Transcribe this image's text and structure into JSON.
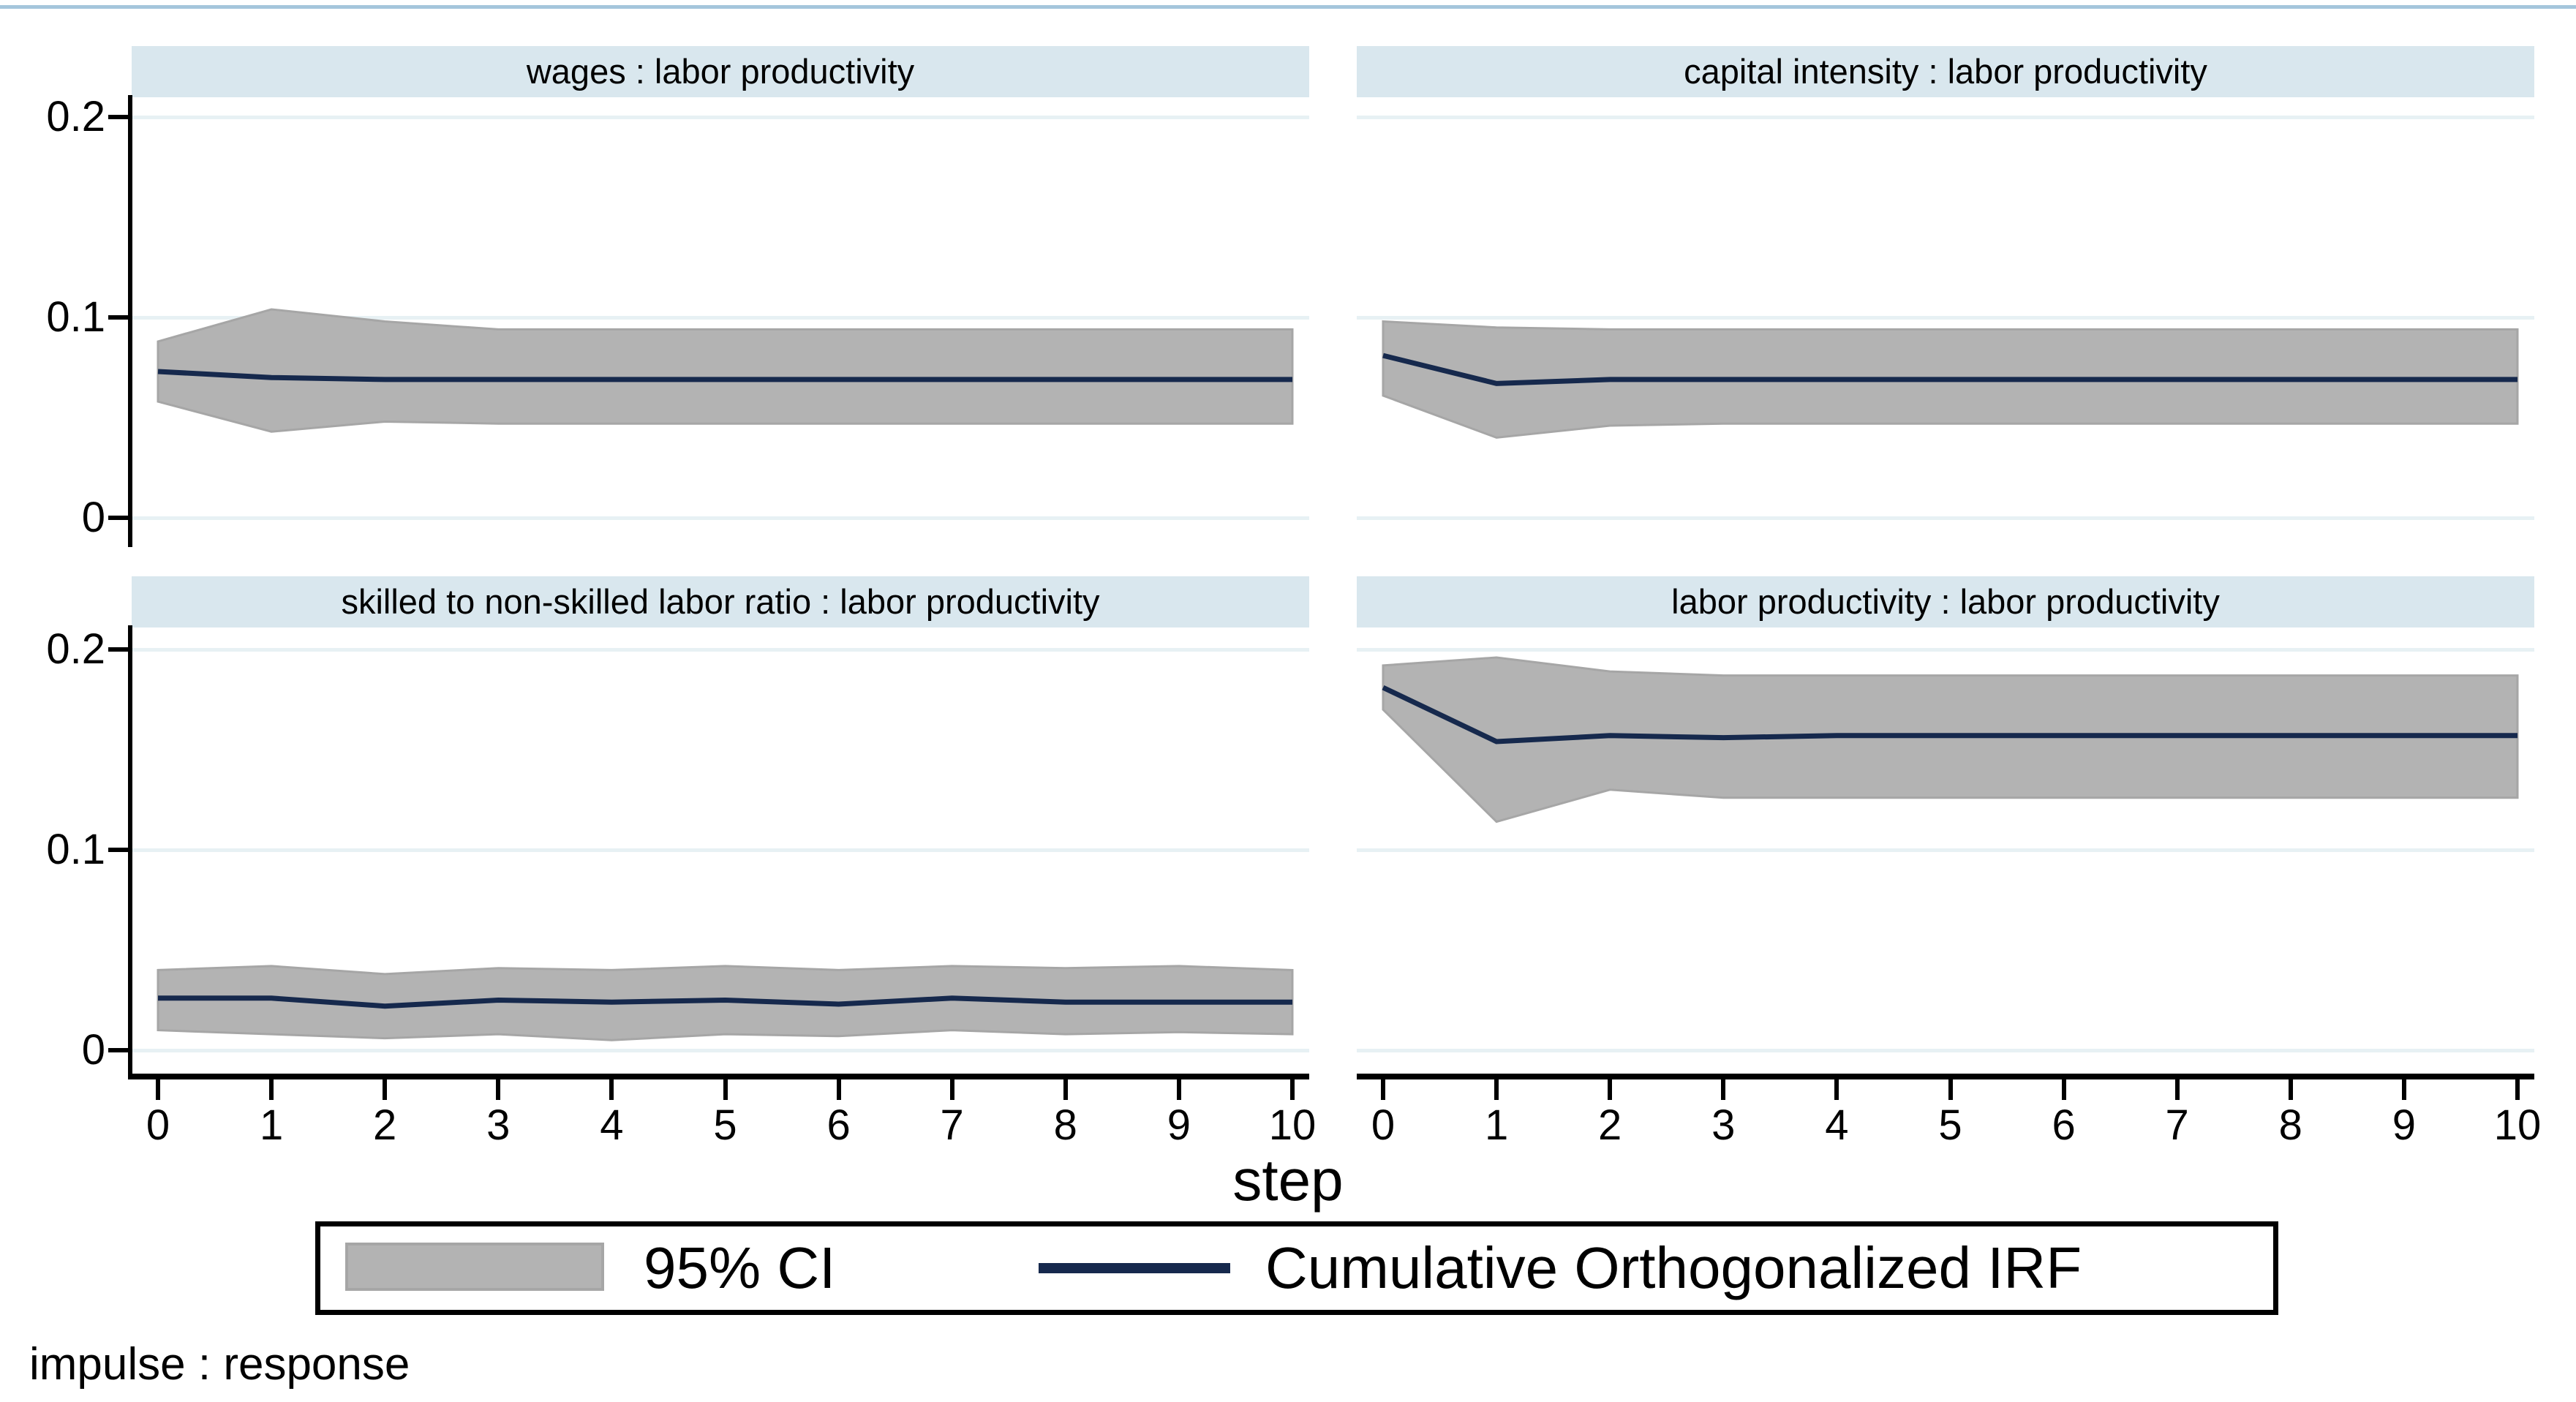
{
  "figure": {
    "x_axis_title": "step",
    "footer": "impulse : response",
    "y_tick_labels": [
      "0.2",
      "0.1",
      "0"
    ],
    "y_tick_values": [
      0.2,
      0.1,
      0
    ],
    "x_tick_labels": [
      "0",
      "1",
      "2",
      "3",
      "4",
      "5",
      "6",
      "7",
      "8",
      "9",
      "10"
    ],
    "legend": {
      "ci_label": "95% CI",
      "irf_label": "Cumulative Orthogonalized IRF"
    },
    "colors": {
      "band": "#b3b3b3",
      "band_edge": "#a6a6a6",
      "irf_line": "#16294d",
      "title_bg": "#d9e7ee",
      "gridline": "#e7f1f4",
      "axis": "#000000",
      "top_rule": "#a5c6dc"
    }
  },
  "chart_data": [
    {
      "type": "area",
      "title": "wages : labor productivity",
      "xlabel": "step",
      "x": [
        0,
        1,
        2,
        3,
        4,
        5,
        6,
        7,
        8,
        9,
        10
      ],
      "ylim": [
        -0.011,
        0.211
      ],
      "yticks": [
        0,
        0.1,
        0.2
      ],
      "grid": true,
      "series": [
        {
          "name": "95% CI upper",
          "values": [
            0.088,
            0.104,
            0.098,
            0.094,
            0.094,
            0.094,
            0.094,
            0.094,
            0.094,
            0.094,
            0.094
          ]
        },
        {
          "name": "Cumulative Orthogonalized IRF",
          "values": [
            0.073,
            0.07,
            0.069,
            0.069,
            0.069,
            0.069,
            0.069,
            0.069,
            0.069,
            0.069,
            0.069
          ]
        },
        {
          "name": "95% CI lower",
          "values": [
            0.058,
            0.043,
            0.048,
            0.047,
            0.047,
            0.047,
            0.047,
            0.047,
            0.047,
            0.047,
            0.047
          ]
        }
      ]
    },
    {
      "type": "area",
      "title": "capital intensity : labor productivity",
      "xlabel": "step",
      "x": [
        0,
        1,
        2,
        3,
        4,
        5,
        6,
        7,
        8,
        9,
        10
      ],
      "ylim": [
        -0.011,
        0.211
      ],
      "yticks": [
        0,
        0.1,
        0.2
      ],
      "grid": true,
      "series": [
        {
          "name": "95% CI upper",
          "values": [
            0.098,
            0.095,
            0.094,
            0.094,
            0.094,
            0.094,
            0.094,
            0.094,
            0.094,
            0.094,
            0.094
          ]
        },
        {
          "name": "Cumulative Orthogonalized IRF",
          "values": [
            0.081,
            0.067,
            0.069,
            0.069,
            0.069,
            0.069,
            0.069,
            0.069,
            0.069,
            0.069,
            0.069
          ]
        },
        {
          "name": "95% CI lower",
          "values": [
            0.061,
            0.04,
            0.046,
            0.047,
            0.047,
            0.047,
            0.047,
            0.047,
            0.047,
            0.047,
            0.047
          ]
        }
      ]
    },
    {
      "type": "area",
      "title": "skilled to non-skilled labor ratio : labor productivity",
      "xlabel": "step",
      "x": [
        0,
        1,
        2,
        3,
        4,
        5,
        6,
        7,
        8,
        9,
        10
      ],
      "ylim": [
        -0.011,
        0.211
      ],
      "yticks": [
        0,
        0.1,
        0.2
      ],
      "grid": true,
      "series": [
        {
          "name": "95% CI upper",
          "values": [
            0.04,
            0.042,
            0.038,
            0.041,
            0.04,
            0.042,
            0.04,
            0.042,
            0.041,
            0.042,
            0.04
          ]
        },
        {
          "name": "Cumulative Orthogonalized IRF",
          "values": [
            0.026,
            0.026,
            0.022,
            0.025,
            0.024,
            0.025,
            0.023,
            0.026,
            0.024,
            0.024,
            0.024
          ]
        },
        {
          "name": "95% CI lower",
          "values": [
            0.01,
            0.008,
            0.006,
            0.008,
            0.005,
            0.008,
            0.007,
            0.01,
            0.008,
            0.009,
            0.008
          ]
        }
      ]
    },
    {
      "type": "area",
      "title": "labor productivity : labor productivity",
      "xlabel": "step",
      "x": [
        0,
        1,
        2,
        3,
        4,
        5,
        6,
        7,
        8,
        9,
        10
      ],
      "ylim": [
        -0.011,
        0.211
      ],
      "yticks": [
        0,
        0.1,
        0.2
      ],
      "grid": true,
      "series": [
        {
          "name": "95% CI upper",
          "values": [
            0.192,
            0.196,
            0.189,
            0.187,
            0.187,
            0.187,
            0.187,
            0.187,
            0.187,
            0.187,
            0.187
          ]
        },
        {
          "name": "Cumulative Orthogonalized IRF",
          "values": [
            0.181,
            0.154,
            0.157,
            0.156,
            0.157,
            0.157,
            0.157,
            0.157,
            0.157,
            0.157,
            0.157
          ]
        },
        {
          "name": "95% CI lower",
          "values": [
            0.17,
            0.114,
            0.13,
            0.126,
            0.126,
            0.126,
            0.126,
            0.126,
            0.126,
            0.126,
            0.126
          ]
        }
      ]
    }
  ]
}
